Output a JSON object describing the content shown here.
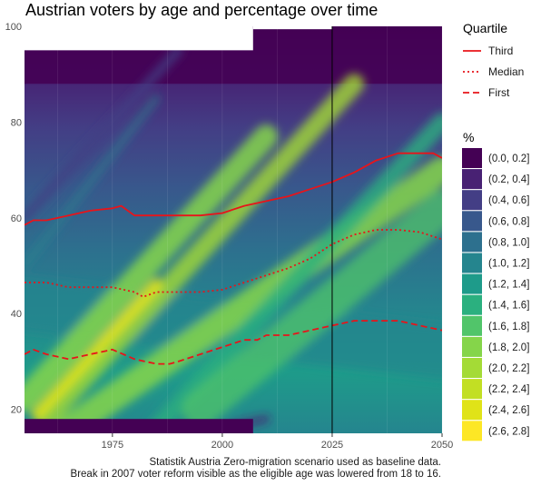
{
  "chart_data": {
    "type": "heatmap",
    "title": "Austrian voters by age and percentage over time",
    "xlabel": "",
    "ylabel": "",
    "xlim": [
      1955,
      2050
    ],
    "ylim": [
      15,
      100
    ],
    "x_ticks": [
      1975,
      2000,
      2025,
      2050
    ],
    "y_ticks": [
      20,
      40,
      60,
      80,
      100
    ],
    "vline_x": 2025,
    "grid": true,
    "legend_placement": "right",
    "fill_legend": {
      "title": "%",
      "bins": [
        {
          "label": "(0.0, 0.2]",
          "color": "#440154"
        },
        {
          "label": "(0.2, 0.4]",
          "color": "#482173"
        },
        {
          "label": "(0.4, 0.6]",
          "color": "#433E85"
        },
        {
          "label": "(0.6, 0.8]",
          "color": "#38588C"
        },
        {
          "label": "(0.8, 1.0]",
          "color": "#2D708E"
        },
        {
          "label": "(1.0, 1.2]",
          "color": "#25858E"
        },
        {
          "label": "(1.2, 1.4]",
          "color": "#1E9B8A"
        },
        {
          "label": "(1.4, 1.6]",
          "color": "#2BB07F"
        },
        {
          "label": "(1.6, 1.8]",
          "color": "#51C56A"
        },
        {
          "label": "(1.8, 2.0]",
          "color": "#85D54A"
        },
        {
          "label": "(2.0, 2.2]",
          "color": "#A4DB36"
        },
        {
          "label": "(2.2, 2.4]",
          "color": "#C2DF23"
        },
        {
          "label": "(2.4, 2.6]",
          "color": "#E0E318"
        },
        {
          "label": "(2.6, 2.8]",
          "color": "#FDE725"
        }
      ]
    },
    "line_legend": {
      "title": "Quartile",
      "items": [
        {
          "label": "Third",
          "dash": "solid"
        },
        {
          "label": "Median",
          "dash": "dotted"
        },
        {
          "label": "First",
          "dash": "dashed"
        }
      ]
    },
    "series": [
      {
        "name": "Third",
        "color": "#e8141a",
        "dash": "solid",
        "x": [
          1955,
          1957,
          1960,
          1965,
          1970,
          1975,
          1977,
          1980,
          1985,
          1990,
          1995,
          2000,
          2005,
          2010,
          2015,
          2020,
          2025,
          2030,
          2035,
          2040,
          2045,
          2048,
          2050
        ],
        "y": [
          58.5,
          59.5,
          59.5,
          60.5,
          61.5,
          62.0,
          62.5,
          60.5,
          60.5,
          60.5,
          60.5,
          61.0,
          62.5,
          63.5,
          64.5,
          66.0,
          67.5,
          69.5,
          72.0,
          73.5,
          73.5,
          73.5,
          72.5
        ]
      },
      {
        "name": "Median",
        "color": "#e8141a",
        "dash": "dotted",
        "x": [
          1955,
          1960,
          1965,
          1970,
          1975,
          1980,
          1982,
          1985,
          1990,
          1995,
          2000,
          2005,
          2010,
          2015,
          2020,
          2025,
          2030,
          2035,
          2040,
          2045,
          2050
        ],
        "y": [
          46.5,
          46.5,
          45.5,
          45.5,
          45.5,
          44.5,
          43.5,
          44.5,
          44.5,
          44.5,
          45.0,
          46.5,
          48.0,
          49.5,
          51.5,
          54.5,
          56.5,
          57.5,
          57.5,
          57.0,
          55.5
        ]
      },
      {
        "name": "First",
        "color": "#e8141a",
        "dash": "dashed",
        "x": [
          1955,
          1957,
          1960,
          1965,
          1970,
          1975,
          1980,
          1985,
          1988,
          1990,
          1995,
          2000,
          2005,
          2008,
          2010,
          2015,
          2020,
          2025,
          2030,
          2035,
          2040,
          2045,
          2050
        ],
        "y": [
          31.5,
          32.5,
          31.5,
          30.5,
          31.5,
          32.5,
          30.5,
          29.5,
          29.5,
          30.0,
          31.5,
          33.0,
          34.5,
          34.5,
          35.5,
          35.5,
          36.5,
          37.5,
          38.5,
          38.5,
          38.5,
          37.5,
          36.5
        ]
      }
    ]
  },
  "caption": {
    "line1": "Statistik Austria Zero-migration scenario used as baseline data.",
    "line2": "Break in 2007 voter reform visible as the eligible age was lowered from 18 to 16."
  }
}
